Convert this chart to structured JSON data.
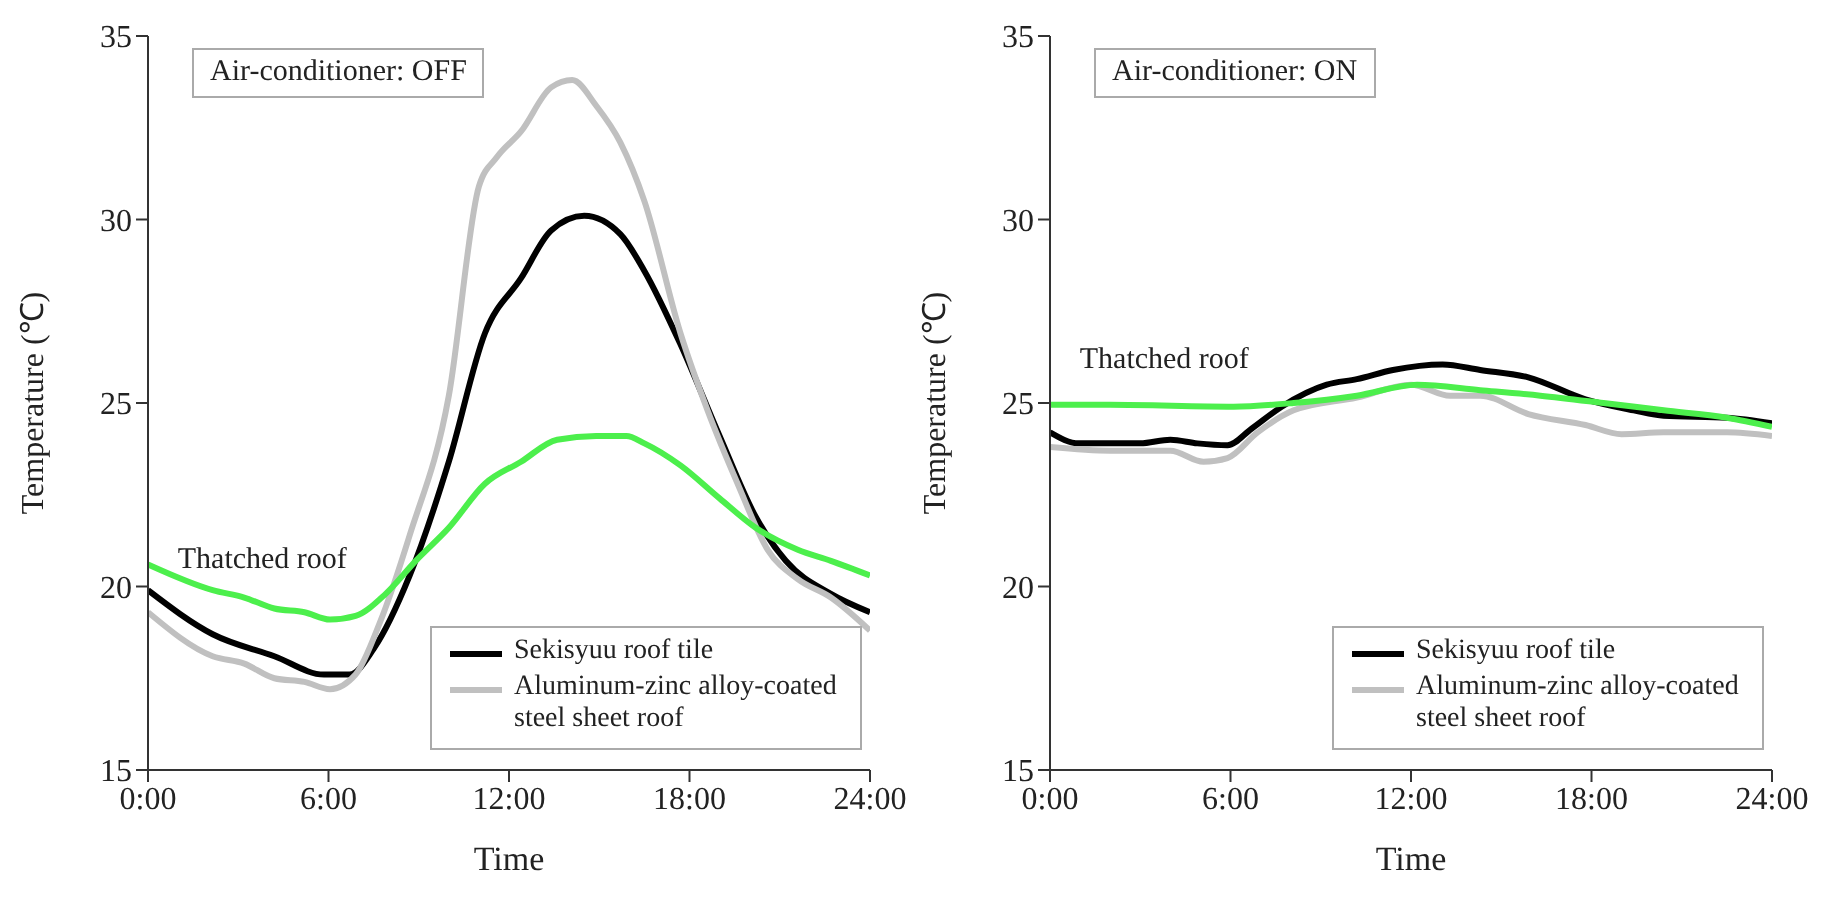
{
  "chart_data": [
    {
      "type": "line",
      "title": "Air-conditioner: OFF",
      "xlabel": "Time",
      "ylabel": "Temperature (℃)",
      "xlim": [
        0,
        24
      ],
      "xticks": [
        {
          "value": 0,
          "label": "0:00"
        },
        {
          "value": 6,
          "label": "6:00"
        },
        {
          "value": 12,
          "label": "12:00"
        },
        {
          "value": 18,
          "label": "18:00"
        },
        {
          "value": 24,
          "label": "24:00"
        }
      ],
      "ylim": [
        15,
        35
      ],
      "yticks": [
        15,
        20,
        25,
        30,
        35
      ],
      "grid": false,
      "legend": "bottom right",
      "marker": "none",
      "annotations": [
        {
          "text": "Thatched roof",
          "x": 3.8,
          "y": 19.5
        }
      ],
      "series": [
        {
          "name": "Sekisyuu roof tile",
          "color": "#000000",
          "x": [
            0,
            2.15,
            4.2,
            5.85,
            6.7,
            7.5,
            8.7,
            10,
            11.2,
            12.4,
            13.4,
            14.5,
            15.7,
            16.5,
            17.7,
            19,
            20.2,
            21.2,
            22.7,
            24
          ],
          "values": [
            19.9,
            18.7,
            18.1,
            17.6,
            17.6,
            18.3,
            20.3,
            23.4,
            26.9,
            28.4,
            29.7,
            30.1,
            29.6,
            28.6,
            26.6,
            24.1,
            21.9,
            20.7,
            19.8,
            19.3
          ]
        },
        {
          "name": "Aluminum-zinc alloy-coated steel sheet roof",
          "color": "#c0c0c0",
          "x": [
            0,
            2.15,
            3.2,
            4.2,
            5.2,
            6.05,
            6.9,
            7.7,
            8.7,
            10,
            11,
            11.6,
            12.4,
            13.4,
            14.1,
            14.9,
            15.7,
            16.5,
            17.7,
            18.6,
            19.6,
            20.6,
            21.6,
            22.7,
            24
          ],
          "values": [
            19.3,
            18.1,
            17.9,
            17.5,
            17.4,
            17.2,
            17.6,
            19,
            21.4,
            25.2,
            30.9,
            31.7,
            32.4,
            33.6,
            33.8,
            33.1,
            32.1,
            30.5,
            26.9,
            24.8,
            22.8,
            21,
            20.2,
            19.7,
            18.8
          ]
        },
        {
          "color": "#4cef4c",
          "x": [
            0,
            2.15,
            3.2,
            4.2,
            5.2,
            6.05,
            6.9,
            7.9,
            8.9,
            10,
            11.2,
            12.4,
            13.6,
            14.9,
            15.9,
            16.5,
            17.7,
            19,
            20.2,
            21.6,
            22.7,
            24
          ],
          "values": [
            20.6,
            19.9,
            19.7,
            19.4,
            19.3,
            19.1,
            19.2,
            19.8,
            20.7,
            21.6,
            22.8,
            23.4,
            24,
            24.1,
            24.1,
            23.9,
            23.3,
            22.4,
            21.6,
            21,
            20.7,
            20.3
          ]
        }
      ]
    },
    {
      "type": "line",
      "title": "Air-conditioner: ON",
      "xlabel": "Time",
      "ylabel": "Temperature (℃)",
      "xlim": [
        0,
        24
      ],
      "xticks": [
        {
          "value": 0,
          "label": "0:00"
        },
        {
          "value": 6,
          "label": "6:00"
        },
        {
          "value": 12,
          "label": "12:00"
        },
        {
          "value": 18,
          "label": "18:00"
        },
        {
          "value": 24,
          "label": "24:00"
        }
      ],
      "ylim": [
        15,
        35
      ],
      "yticks": [
        15,
        20,
        25,
        30,
        35
      ],
      "grid": false,
      "legend": "bottom right",
      "marker": "none",
      "annotations": [
        {
          "text": "Thatched roof",
          "x": 3.8,
          "y": 24.95
        }
      ],
      "series": [
        {
          "name": "Sekisyuu roof tile",
          "color": "#000000",
          "x": [
            0,
            0.96,
            3,
            4,
            4.9,
            5.9,
            6.7,
            7.7,
            9.2,
            10.2,
            11.4,
            13.05,
            14.3,
            15.9,
            17.8,
            19.4,
            20.4,
            22.5,
            24
          ],
          "values": [
            24.2,
            23.9,
            23.9,
            24,
            23.9,
            23.85,
            24.3,
            24.9,
            25.5,
            25.65,
            25.9,
            26.05,
            25.9,
            25.7,
            25.1,
            24.8,
            24.65,
            24.6,
            24.45
          ]
        },
        {
          "name": "Aluminum-zinc alloy-coated steel sheet roof",
          "color": "#c0c0c0",
          "x": [
            0,
            2,
            4,
            5.1,
            5.9,
            6.9,
            8.1,
            10.2,
            12,
            13.3,
            14.3,
            15.9,
            17.8,
            19,
            20.4,
            22.5,
            24
          ],
          "values": [
            23.8,
            23.7,
            23.7,
            23.4,
            23.5,
            24.2,
            24.8,
            25.15,
            25.5,
            25.2,
            25.2,
            24.7,
            24.4,
            24.15,
            24.2,
            24.2,
            24.1
          ]
        },
        {
          "color": "#4cef4c",
          "x": [
            0,
            2,
            6.1,
            8.1,
            10.2,
            12.2,
            14.3,
            16.3,
            18.4,
            20.4,
            22.5,
            24
          ],
          "values": [
            24.95,
            24.95,
            24.9,
            25,
            25.2,
            25.5,
            25.35,
            25.2,
            25,
            24.8,
            24.6,
            24.35
          ]
        }
      ]
    }
  ]
}
